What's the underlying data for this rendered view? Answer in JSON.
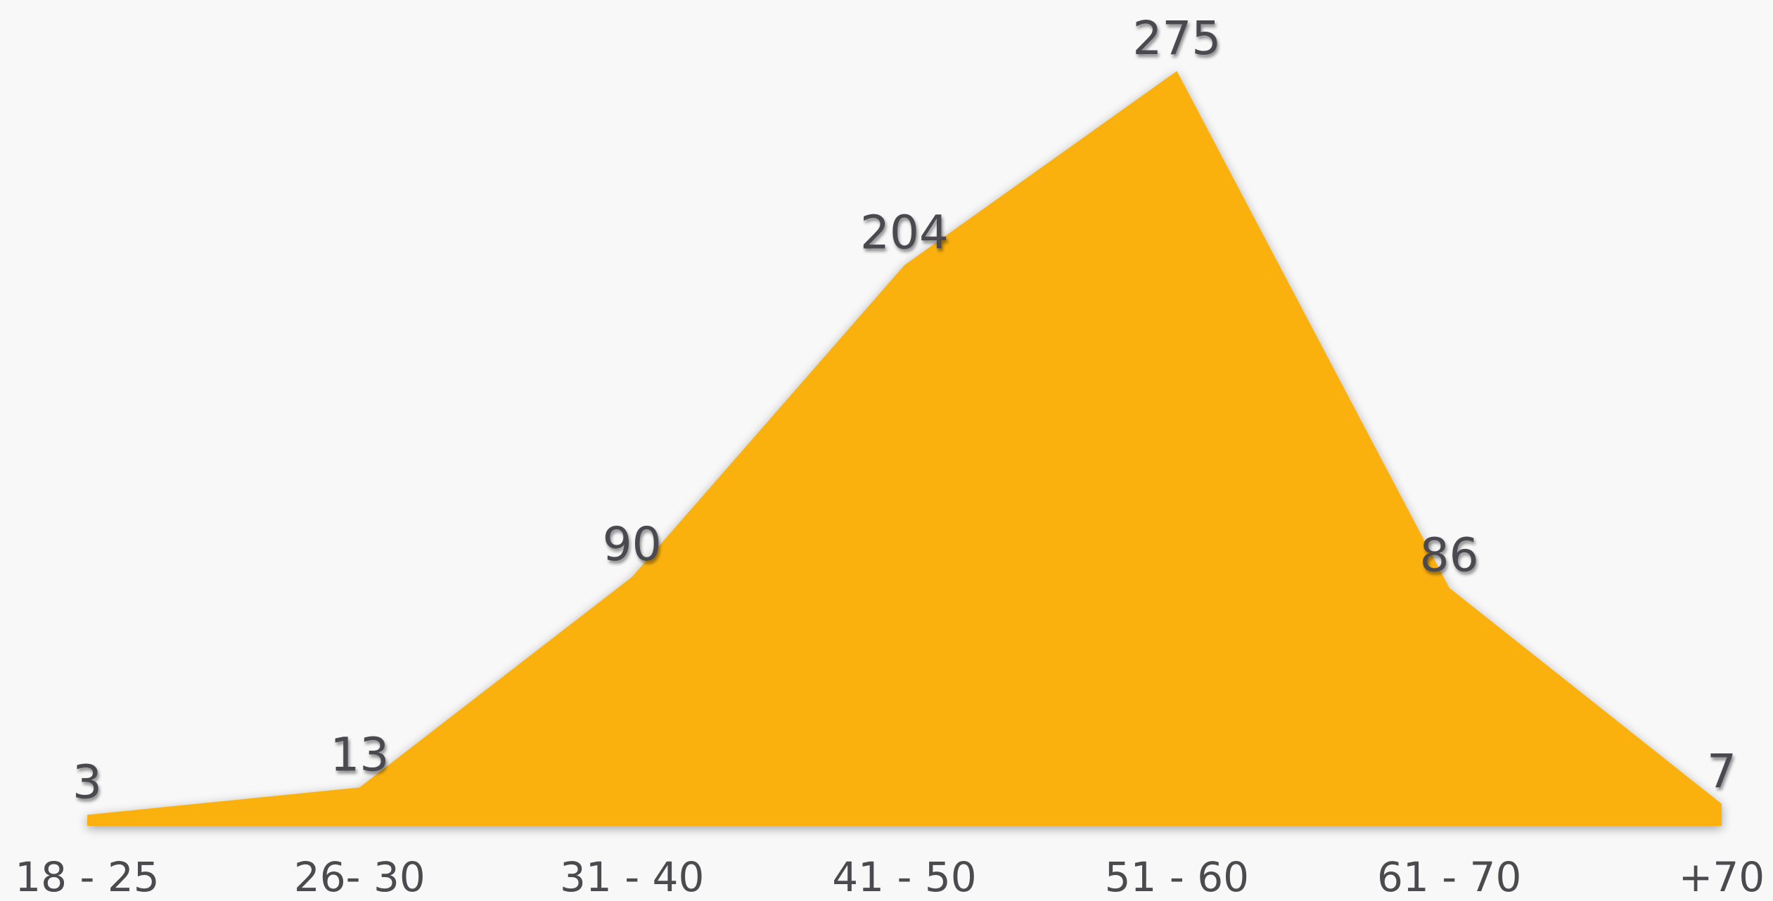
{
  "chart_data": {
    "type": "area",
    "categories": [
      "18 - 25",
      "26- 30",
      "31 - 40",
      "41 - 50",
      "51 - 60",
      "61 - 70",
      "+70"
    ],
    "values": [
      3,
      13,
      90,
      204,
      275,
      86,
      7
    ],
    "data_labels": [
      "3",
      "13",
      "90",
      "204",
      "275",
      "86",
      "7"
    ],
    "title": "",
    "xlabel": "",
    "ylabel": "",
    "ylim": [
      0,
      275
    ],
    "grid": false,
    "legend": "none",
    "colors": {
      "area": "#fbb111",
      "text": "#4a4a4f",
      "background": "#f8f8f8"
    }
  }
}
